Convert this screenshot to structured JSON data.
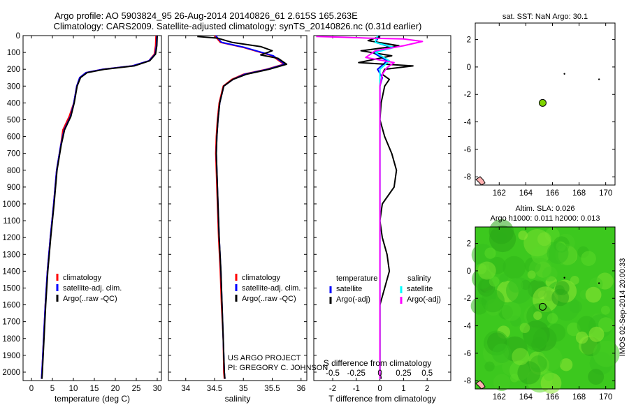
{
  "header": {
    "title_line1": "Argo profile: AO 5903824_95 26-Aug-2014 20140826_61 2.615S 165.263E",
    "title_line2": "Climatology: CARS2009. Satellite-adjusted climatology: synTS_20140826.nc (0.31d earlier)"
  },
  "credit": {
    "line1": "US ARGO PROJECT",
    "line2": "PI: GREGORY C. JOHNSON"
  },
  "timestamp": "IMOS 02-Sep-2014 20:00:33",
  "colors": {
    "climatology": "#ff0000",
    "satellite": "#0000ff",
    "argo": "#000000",
    "salinity_satellite": "#00ffff",
    "salinity_argo": "#ff00ff",
    "sst_bg": "#ffffff",
    "sla_bg": "#3cc81e",
    "marker_fill": "#7fd400"
  },
  "chart_data": [
    {
      "type": "line",
      "id": "temperature",
      "xlabel": "temperature (deg C)",
      "xlim": [
        -2,
        31
      ],
      "xticks": [
        0,
        5,
        10,
        15,
        20,
        25,
        30
      ],
      "ylim": [
        2050,
        0
      ],
      "yticks": [
        0,
        100,
        200,
        300,
        400,
        500,
        600,
        700,
        800,
        900,
        1000,
        1100,
        1200,
        1300,
        1400,
        1500,
        1600,
        1700,
        1800,
        1900,
        2000
      ],
      "legend": [
        "climatology",
        "satellite-adj. clim.",
        "Argo(..raw -QC)"
      ],
      "series": [
        {
          "name": "climatology",
          "color": "#ff0000",
          "points": [
            [
              29.7,
              0
            ],
            [
              29.6,
              60
            ],
            [
              29.3,
              110
            ],
            [
              28,
              150
            ],
            [
              24,
              180
            ],
            [
              17,
              200
            ],
            [
              13,
              220
            ],
            [
              11.5,
              250
            ],
            [
              10.8,
              300
            ],
            [
              10.1,
              400
            ],
            [
              9,
              480
            ],
            [
              7.5,
              560
            ],
            [
              7,
              650
            ],
            [
              6,
              800
            ],
            [
              5.3,
              1000
            ],
            [
              4.5,
              1200
            ],
            [
              3.8,
              1400
            ],
            [
              3.3,
              1600
            ],
            [
              2.9,
              1800
            ],
            [
              2.5,
              2000
            ],
            [
              2.4,
              2040
            ]
          ]
        },
        {
          "name": "satellite-adj. clim.",
          "color": "#0000ff",
          "points": [
            [
              29.9,
              0
            ],
            [
              29.8,
              60
            ],
            [
              29.5,
              110
            ],
            [
              28,
              150
            ],
            [
              24,
              180
            ],
            [
              17,
              200
            ],
            [
              13,
              220
            ],
            [
              11.5,
              250
            ],
            [
              10.8,
              300
            ],
            [
              10.1,
              400
            ],
            [
              9.3,
              480
            ],
            [
              7.8,
              560
            ],
            [
              7,
              650
            ],
            [
              6,
              800
            ],
            [
              5.3,
              1000
            ],
            [
              4.5,
              1200
            ],
            [
              3.8,
              1400
            ],
            [
              3.3,
              1600
            ],
            [
              2.9,
              1800
            ],
            [
              2.5,
              2000
            ],
            [
              2.4,
              2040
            ]
          ]
        },
        {
          "name": "Argo(..raw -QC)",
          "color": "#000000",
          "points": [
            [
              30,
              0
            ],
            [
              29.9,
              60
            ],
            [
              29.6,
              110
            ],
            [
              28.2,
              150
            ],
            [
              24.5,
              180
            ],
            [
              17.5,
              200
            ],
            [
              13.3,
              220
            ],
            [
              11.7,
              250
            ],
            [
              10.9,
              300
            ],
            [
              10.2,
              400
            ],
            [
              9.4,
              480
            ],
            [
              7.9,
              560
            ],
            [
              7.1,
              650
            ],
            [
              6.1,
              800
            ],
            [
              5.4,
              1000
            ],
            [
              4.6,
              1200
            ],
            [
              3.9,
              1400
            ],
            [
              3.4,
              1600
            ],
            [
              3,
              1800
            ],
            [
              2.6,
              2000
            ],
            [
              2.5,
              2040
            ]
          ]
        }
      ]
    },
    {
      "type": "line",
      "id": "salinity",
      "xlabel": "salinity",
      "xlim": [
        33.7,
        36.1
      ],
      "xticks": [
        34,
        34.5,
        35,
        35.5,
        36
      ],
      "ylim": [
        2050,
        0
      ],
      "legend": [
        "climatology",
        "satellite-adj. clim.",
        "Argo(..raw -QC)"
      ],
      "series": [
        {
          "name": "climatology",
          "color": "#ff0000",
          "points": [
            [
              34.5,
              0
            ],
            [
              34.6,
              40
            ],
            [
              35,
              70
            ],
            [
              35.5,
              120
            ],
            [
              35.7,
              170
            ],
            [
              35.4,
              200
            ],
            [
              35,
              230
            ],
            [
              34.8,
              260
            ],
            [
              34.65,
              300
            ],
            [
              34.58,
              400
            ],
            [
              34.55,
              500
            ],
            [
              34.53,
              600
            ],
            [
              34.52,
              700
            ],
            [
              34.53,
              800
            ],
            [
              34.55,
              1000
            ],
            [
              34.57,
              1200
            ],
            [
              34.6,
              1400
            ],
            [
              34.62,
              1600
            ],
            [
              34.65,
              1800
            ],
            [
              34.66,
              2000
            ],
            [
              34.67,
              2040
            ]
          ]
        },
        {
          "name": "satellite-adj. clim.",
          "color": "#0000ff",
          "points": [
            [
              34.52,
              0
            ],
            [
              34.62,
              40
            ],
            [
              35.02,
              70
            ],
            [
              35.52,
              120
            ],
            [
              35.72,
              170
            ],
            [
              35.42,
              200
            ],
            [
              35.02,
              230
            ],
            [
              34.82,
              260
            ],
            [
              34.66,
              300
            ],
            [
              34.59,
              400
            ],
            [
              34.56,
              500
            ],
            [
              34.54,
              600
            ],
            [
              34.53,
              700
            ],
            [
              34.54,
              800
            ],
            [
              34.56,
              1000
            ],
            [
              34.58,
              1200
            ],
            [
              34.61,
              1400
            ],
            [
              34.63,
              1600
            ],
            [
              34.65,
              1800
            ],
            [
              34.67,
              2000
            ],
            [
              34.68,
              2040
            ]
          ]
        },
        {
          "name": "Argo(..raw -QC)",
          "color": "#000000",
          "points": [
            [
              34.2,
              5
            ],
            [
              34.55,
              15
            ],
            [
              34.8,
              40
            ],
            [
              35.3,
              65
            ],
            [
              35.5,
              90
            ],
            [
              35.3,
              115
            ],
            [
              35.6,
              135
            ],
            [
              35.75,
              170
            ],
            [
              35.45,
              200
            ],
            [
              35.05,
              230
            ],
            [
              34.82,
              260
            ],
            [
              34.66,
              300
            ],
            [
              34.59,
              400
            ],
            [
              34.56,
              500
            ],
            [
              34.54,
              600
            ],
            [
              34.53,
              700
            ],
            [
              34.54,
              800
            ],
            [
              34.56,
              1000
            ],
            [
              34.58,
              1200
            ],
            [
              34.61,
              1400
            ],
            [
              34.63,
              1600
            ],
            [
              34.65,
              1800
            ],
            [
              34.67,
              2000
            ],
            [
              34.68,
              2040
            ]
          ]
        }
      ]
    },
    {
      "type": "line",
      "id": "difference",
      "xlabel": "T difference from climatology",
      "xlabel_top": "S difference from climatology",
      "xlim": [
        -2.8,
        3
      ],
      "xticks": [
        -2,
        -1,
        0,
        1,
        2
      ],
      "xticks_s": [
        -0.5,
        -0.25,
        0,
        0.25,
        0.5
      ],
      "xtick_labels_s": [
        "-0.5",
        "-0.25",
        "0",
        "0.25",
        "0.5"
      ],
      "ylim": [
        2050,
        0
      ],
      "legend_temperature": [
        "temperature",
        "satellite",
        "Argo(-adj)"
      ],
      "legend_salinity": [
        "salinity",
        "satellite",
        "Argo(-adj)"
      ],
      "series": [
        {
          "name": "temperature satellite",
          "color": "#0000ff",
          "points": [
            [
              0,
              0
            ],
            [
              -0.2,
              40
            ],
            [
              0.5,
              70
            ],
            [
              -0.3,
              100
            ],
            [
              0.3,
              150
            ],
            [
              -0.1,
              200
            ],
            [
              0.1,
              250
            ],
            [
              0,
              300
            ],
            [
              0,
              500
            ],
            [
              0,
              1000
            ],
            [
              0,
              1500
            ],
            [
              0,
              2000
            ],
            [
              0,
              2040
            ]
          ]
        },
        {
          "name": "temperature Argo(-adj)",
          "color": "#000000",
          "points": [
            [
              0,
              5
            ],
            [
              -0.5,
              30
            ],
            [
              0.8,
              60
            ],
            [
              -0.8,
              90
            ],
            [
              0.5,
              120
            ],
            [
              -0.9,
              160
            ],
            [
              1.4,
              180
            ],
            [
              0.2,
              200
            ],
            [
              0.1,
              230
            ],
            [
              0.4,
              260
            ],
            [
              0.2,
              300
            ],
            [
              0.05,
              400
            ],
            [
              0,
              500
            ],
            [
              0.2,
              600
            ],
            [
              0.5,
              700
            ],
            [
              0.7,
              800
            ],
            [
              0.6,
              900
            ],
            [
              0.1,
              1000
            ],
            [
              0,
              1100
            ],
            [
              0.1,
              1200
            ],
            [
              0.3,
              1300
            ],
            [
              0.4,
              1400
            ],
            [
              0.2,
              1500
            ],
            [
              0,
              1600
            ],
            [
              0,
              1800
            ],
            [
              0,
              2000
            ],
            [
              0.05,
              2040
            ]
          ]
        },
        {
          "name": "salinity satellite",
          "color": "#00ffff",
          "points": [
            [
              -0.1,
              0
            ],
            [
              -0.2,
              40
            ],
            [
              0.6,
              70
            ],
            [
              -0.2,
              100
            ],
            [
              0.4,
              150
            ],
            [
              0,
              200
            ],
            [
              0,
              250
            ],
            [
              0,
              300
            ],
            [
              0,
              500
            ],
            [
              0,
              1000
            ],
            [
              0,
              1500
            ],
            [
              0,
              2000
            ],
            [
              0,
              2040
            ]
          ]
        },
        {
          "name": "salinity Argo(-adj)",
          "color": "#ff00ff",
          "points": [
            [
              -2.7,
              5
            ],
            [
              -1.5,
              10
            ],
            [
              -0.5,
              15
            ],
            [
              1,
              20
            ],
            [
              1.8,
              35
            ],
            [
              1.0,
              60
            ],
            [
              -0.2,
              90
            ],
            [
              -0.6,
              130
            ],
            [
              0.6,
              160
            ],
            [
              0.3,
              190
            ],
            [
              0.1,
              230
            ],
            [
              0,
              300
            ],
            [
              0,
              500
            ],
            [
              0,
              1000
            ],
            [
              0,
              1500
            ],
            [
              0,
              2000
            ],
            [
              0,
              2040
            ]
          ]
        }
      ]
    },
    {
      "type": "scatter",
      "id": "sst_map",
      "title": "sat. SST: NaN Argo: 30.1",
      "xlim": [
        160.2,
        170.7
      ],
      "ylim": [
        -8.6,
        3.2
      ],
      "xticks": [
        162,
        164,
        166,
        168,
        170
      ],
      "yticks": [
        2,
        0,
        -2,
        -4,
        -6,
        -8
      ],
      "points": [
        {
          "lon": 165.263,
          "lat": -2.615,
          "kind": "argo"
        },
        {
          "lon": 166.9,
          "lat": -0.5,
          "kind": "dot"
        },
        {
          "lon": 169.5,
          "lat": -0.9,
          "kind": "dot"
        }
      ]
    },
    {
      "type": "heatmap",
      "id": "sla_map",
      "title_line1": "Altim. SLA: 0.026",
      "title_line2": "Argo h1000: 0.011 h2000: 0.013",
      "xlim": [
        160.2,
        170.7
      ],
      "ylim": [
        -8.6,
        3.2
      ],
      "xticks": [
        162,
        164,
        166,
        168,
        170
      ],
      "yticks": [
        2,
        0,
        -2,
        -4,
        -6,
        -8
      ],
      "points": [
        {
          "lon": 165.263,
          "lat": -2.615,
          "kind": "argo"
        },
        {
          "lon": 166.9,
          "lat": -0.5,
          "kind": "dot"
        },
        {
          "lon": 169.5,
          "lat": -0.9,
          "kind": "dot"
        }
      ]
    }
  ]
}
